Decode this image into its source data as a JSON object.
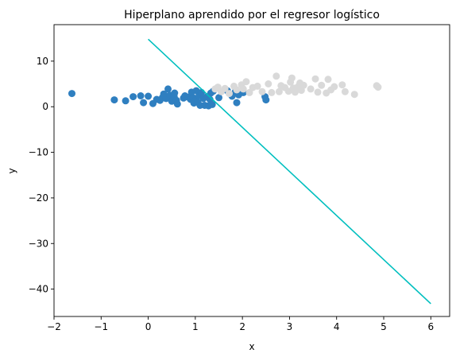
{
  "chart_data": {
    "type": "scatter",
    "title": "Hiperplano aprendido por el regresor logístico",
    "xlabel": "x",
    "ylabel": "y",
    "xlim": [
      -2,
      6.4
    ],
    "ylim": [
      -46,
      18
    ],
    "xticks": [
      -2,
      -1,
      0,
      1,
      2,
      3,
      4,
      5,
      6
    ],
    "xtick_labels": [
      "−2",
      "−1",
      "0",
      "1",
      "2",
      "3",
      "4",
      "5",
      "6"
    ],
    "yticks": [
      10,
      0,
      -10,
      -20,
      -30,
      -40
    ],
    "ytick_labels": [
      "10",
      "0",
      "−10",
      "−20",
      "−30",
      "−40"
    ],
    "grid": false,
    "series": [
      {
        "color": "#2f7fc0",
        "points": [
          [
            -1.62,
            2.9
          ],
          [
            -0.72,
            1.5
          ],
          [
            -0.48,
            1.3
          ],
          [
            -0.32,
            2.2
          ],
          [
            -0.16,
            2.4
          ],
          [
            -0.1,
            0.9
          ],
          [
            0.0,
            2.3
          ],
          [
            0.1,
            0.7
          ],
          [
            0.18,
            1.6
          ],
          [
            0.25,
            1.4
          ],
          [
            0.3,
            2.0
          ],
          [
            0.33,
            2.8
          ],
          [
            0.38,
            1.8
          ],
          [
            0.42,
            3.9
          ],
          [
            0.46,
            2.5
          ],
          [
            0.5,
            1.2
          ],
          [
            0.53,
            1.7
          ],
          [
            0.55,
            2.2
          ],
          [
            0.56,
            3.0
          ],
          [
            0.6,
            1.4
          ],
          [
            0.62,
            0.6
          ],
          [
            0.75,
            1.9
          ],
          [
            0.78,
            2.4
          ],
          [
            0.85,
            2.1
          ],
          [
            0.9,
            1.6
          ],
          [
            0.92,
            3.2
          ],
          [
            0.95,
            2.0
          ],
          [
            0.97,
            0.8
          ],
          [
            1.0,
            1.4
          ],
          [
            1.02,
            3.5
          ],
          [
            1.05,
            1.0
          ],
          [
            1.08,
            2.4
          ],
          [
            1.1,
            0.3
          ],
          [
            1.13,
            3.1
          ],
          [
            1.17,
            1.8
          ],
          [
            1.2,
            0.3
          ],
          [
            1.25,
            2.2
          ],
          [
            1.28,
            0.2
          ],
          [
            1.31,
            1.6
          ],
          [
            1.33,
            3.0
          ],
          [
            1.36,
            0.5
          ],
          [
            1.38,
            3.4
          ],
          [
            1.5,
            2.0
          ],
          [
            1.68,
            3.5
          ],
          [
            1.78,
            2.3
          ],
          [
            1.85,
            3.3
          ],
          [
            1.88,
            0.9
          ],
          [
            1.92,
            2.6
          ],
          [
            2.02,
            3.1
          ],
          [
            2.48,
            2.2
          ],
          [
            2.5,
            1.5
          ]
        ]
      },
      {
        "color": "#d9d9d9",
        "points": [
          [
            1.42,
            3.9
          ],
          [
            1.48,
            4.3
          ],
          [
            1.55,
            3.3
          ],
          [
            1.63,
            4.0
          ],
          [
            1.72,
            2.9
          ],
          [
            1.82,
            4.5
          ],
          [
            1.88,
            3.7
          ],
          [
            1.98,
            4.8
          ],
          [
            2.02,
            3.9
          ],
          [
            2.08,
            5.5
          ],
          [
            2.15,
            3.1
          ],
          [
            2.22,
            4.2
          ],
          [
            2.32,
            4.5
          ],
          [
            2.42,
            3.3
          ],
          [
            2.55,
            5.0
          ],
          [
            2.62,
            3.1
          ],
          [
            2.72,
            6.7
          ],
          [
            2.78,
            3.3
          ],
          [
            2.82,
            4.6
          ],
          [
            2.9,
            4.2
          ],
          [
            2.98,
            3.4
          ],
          [
            3.02,
            5.4
          ],
          [
            3.05,
            6.3
          ],
          [
            3.08,
            4.1
          ],
          [
            3.12,
            3.2
          ],
          [
            3.18,
            4.4
          ],
          [
            3.22,
            5.2
          ],
          [
            3.25,
            3.6
          ],
          [
            3.3,
            4.7
          ],
          [
            3.45,
            3.9
          ],
          [
            3.55,
            6.1
          ],
          [
            3.6,
            3.2
          ],
          [
            3.68,
            4.7
          ],
          [
            3.78,
            3.0
          ],
          [
            3.82,
            6.0
          ],
          [
            3.88,
            3.7
          ],
          [
            3.95,
            4.4
          ],
          [
            4.12,
            4.8
          ],
          [
            4.18,
            3.3
          ],
          [
            4.38,
            2.7
          ],
          [
            4.85,
            4.6
          ],
          [
            4.88,
            4.3
          ]
        ]
      }
    ],
    "line": {
      "color": "#00bfbf",
      "x": [
        0,
        6
      ],
      "y": [
        14.8,
        -43.2
      ]
    }
  }
}
